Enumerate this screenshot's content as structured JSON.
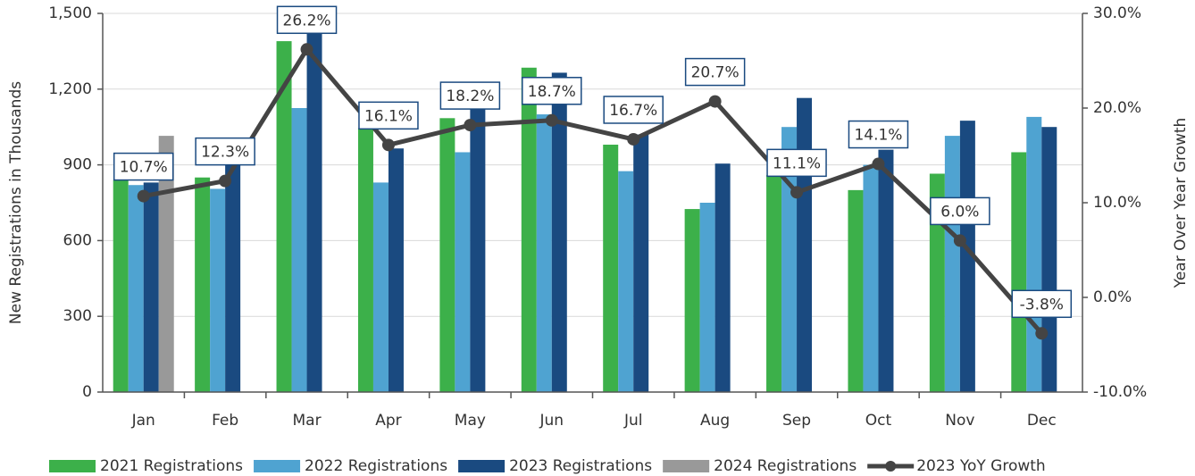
{
  "chart_data": {
    "type": "bar",
    "ylabel": "New Registrations in Thousands",
    "y2label": "Year Over Year Growth",
    "categories": [
      "Jan",
      "Feb",
      "Mar",
      "Apr",
      "May",
      "Jun",
      "Jul",
      "Aug",
      "Sep",
      "Oct",
      "Nov",
      "Dec"
    ],
    "series": [
      {
        "name": "2021 Registrations",
        "color": "#3cb04a",
        "values": [
          840,
          850,
          1390,
          1045,
          1085,
          1285,
          980,
          725,
          860,
          800,
          865,
          950
        ]
      },
      {
        "name": "2022 Registrations",
        "color": "#4fa3d1",
        "values": [
          820,
          805,
          1125,
          830,
          950,
          1100,
          875,
          750,
          1050,
          900,
          1015,
          1090
        ]
      },
      {
        "name": "2023 Registrations",
        "color": "#1a4a80",
        "values": [
          830,
          900,
          1420,
          965,
          1120,
          1265,
          1020,
          905,
          1165,
          960,
          1075,
          1050
        ]
      },
      {
        "name": "2024 Registrations",
        "color": "#999999",
        "values": [
          1015,
          null,
          null,
          null,
          null,
          null,
          null,
          null,
          null,
          null,
          null,
          null
        ]
      },
      {
        "name": "2023 YoY Growth",
        "color": "#444444",
        "type": "line",
        "axis": "y2",
        "values": [
          10.7,
          12.3,
          26.2,
          16.1,
          18.2,
          18.7,
          16.7,
          20.7,
          11.1,
          14.1,
          6.0,
          -3.8
        ],
        "value_labels": [
          "10.7%",
          "12.3%",
          "26.2%",
          "16.1%",
          "18.2%",
          "18.7%",
          "16.7%",
          "20.7%",
          "11.1%",
          "14.1%",
          "6.0%",
          "-3.8%"
        ]
      }
    ],
    "ylim": [
      0,
      1500
    ],
    "yticks": [
      0,
      300,
      600,
      900,
      {
        "value": 1200,
        "label": "1,200"
      },
      {
        "value": 1500,
        "label": "1,500"
      }
    ],
    "y2lim": [
      -10,
      30
    ],
    "y2ticks": [
      {
        "value": -10,
        "label": "-10.0%"
      },
      {
        "value": 0,
        "label": "0.0%"
      },
      {
        "value": 10,
        "label": "10.0%"
      },
      {
        "value": 20,
        "label": "20.0%"
      },
      {
        "value": 30,
        "label": "30.0%"
      }
    ],
    "grid": true,
    "legend": "bottom"
  }
}
